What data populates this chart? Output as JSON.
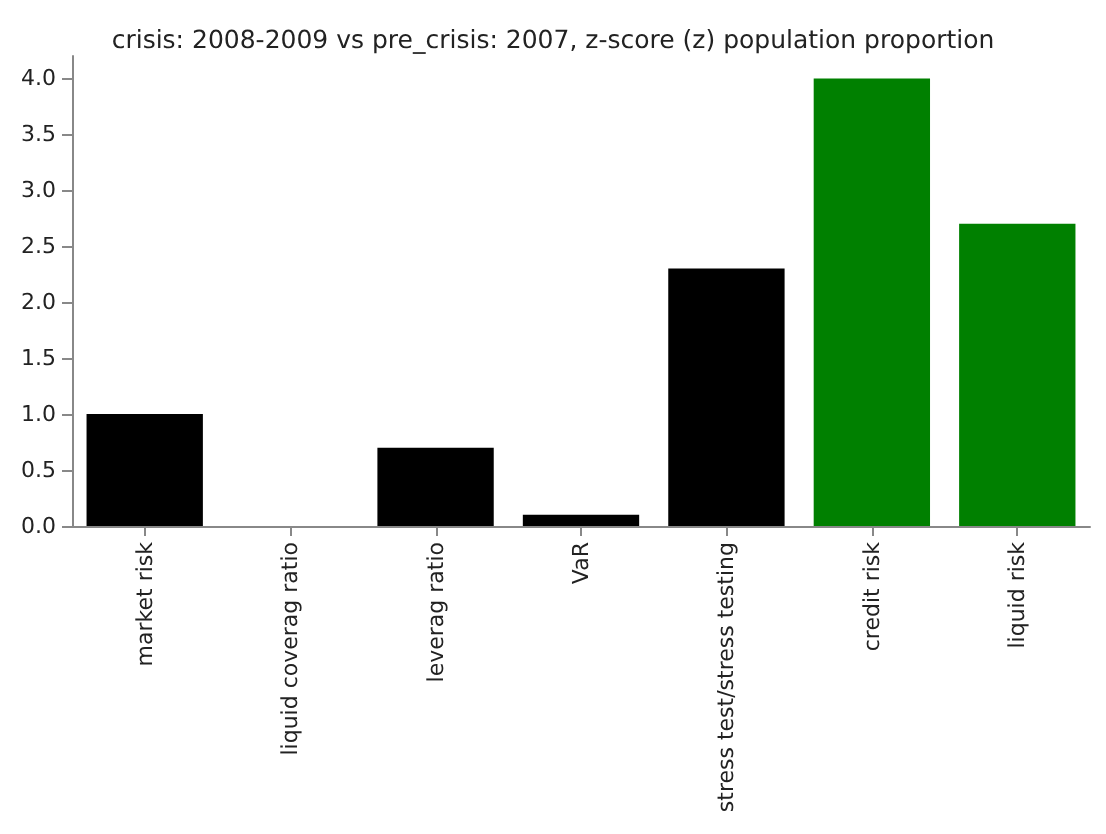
{
  "chart_data": {
    "type": "bar",
    "title": "crisis: 2008-2009 vs pre_crisis: 2007, z-score (z) population proportion",
    "categories": [
      "market risk",
      "liquid coverag ratio",
      "leverag ratio",
      "VaR",
      "stress test/stress testing",
      "credit risk",
      "liquid risk"
    ],
    "values": [
      1.0,
      0.0,
      0.7,
      0.1,
      2.3,
      4.0,
      2.7
    ],
    "colors": [
      "#000000",
      "#000000",
      "#000000",
      "#000000",
      "#000000",
      "#008000",
      "#008000"
    ],
    "ylim": [
      0,
      4.2
    ],
    "yticks": [
      {
        "value": 0,
        "label": "0.0"
      },
      {
        "value": 0.5,
        "label": "0.5"
      },
      {
        "value": 1,
        "label": "1.0"
      },
      {
        "value": 1.5,
        "label": "1.5"
      },
      {
        "value": 2,
        "label": "2.0"
      },
      {
        "value": 2.5,
        "label": "2.5"
      },
      {
        "value": 3,
        "label": "3.0"
      },
      {
        "value": 3.5,
        "label": "3.5"
      },
      {
        "value": 4,
        "label": "4.0"
      }
    ],
    "grid": false
  }
}
